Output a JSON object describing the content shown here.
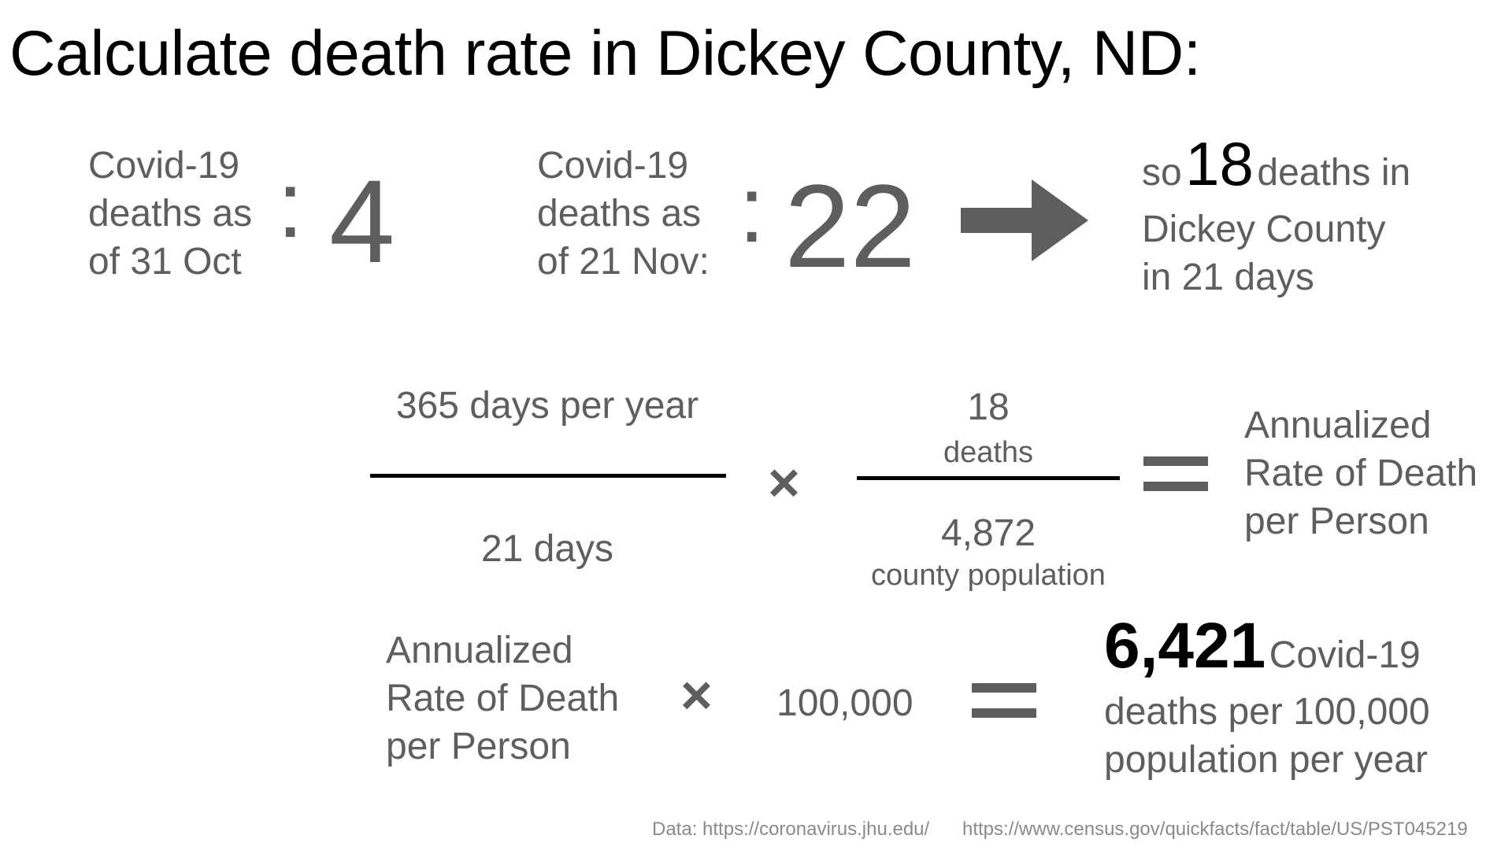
{
  "title": "Calculate death rate in Dickey County, ND:",
  "row1": {
    "oct": {
      "label_lines": [
        "Covid-19",
        "deaths as",
        "of 31 Oct"
      ],
      "colon": ":",
      "value": "4"
    },
    "nov": {
      "label_lines": [
        "Covid-19",
        "deaths as",
        "of 21 Nov:"
      ],
      "colon": ":",
      "value": "22"
    },
    "arrow_icon": "right-arrow-icon",
    "result": {
      "prefix": "so",
      "value": "18",
      "line1_suffix": "deaths in",
      "line2": "Dickey County",
      "line3": "in 21 days"
    }
  },
  "row2": {
    "fraction1": {
      "numerator": "365 days per year",
      "denominator": "21 days"
    },
    "times_symbol": "×",
    "fraction2": {
      "numerator_value": "18",
      "numerator_unit": "deaths",
      "denominator_value": "4,872",
      "denominator_unit": "county population"
    },
    "equals_icon": "equals-icon",
    "result_lines": [
      "Annualized",
      "Rate of Death",
      "per Person"
    ]
  },
  "row3": {
    "label_lines": [
      "Annualized",
      "Rate of Death",
      "per Person"
    ],
    "times_symbol": "×",
    "multiplier": "100,000",
    "equals_icon": "equals-icon",
    "result": {
      "value": "6,421",
      "line1_suffix": "Covid-19",
      "line2": "deaths per 100,000",
      "line3": "population per year"
    }
  },
  "footer": {
    "source1": "Data: https://coronavirus.jhu.edu/",
    "source2": "https://www.census.gov/quickfacts/fact/table/US/PST045219"
  },
  "colors": {
    "text_gray": "#5e5e5e",
    "title_black": "#000000",
    "footer_gray": "#8a8a8a"
  }
}
